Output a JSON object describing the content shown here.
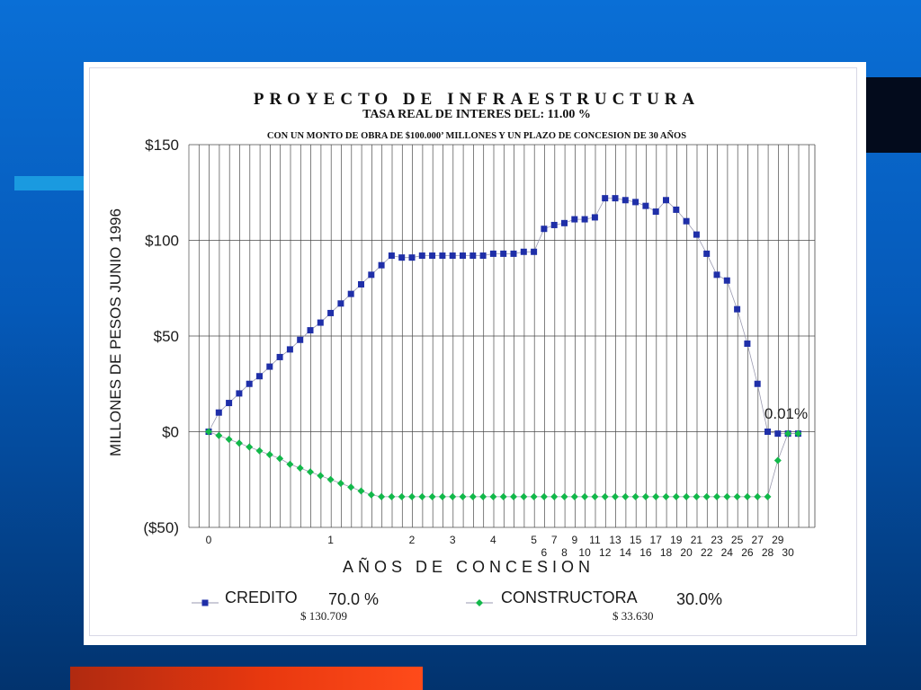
{
  "chart_data": {
    "type": "line",
    "title": "PROYECTO DE INFRAESTRUCTURA",
    "subtitle": "TASA REAL DE INTERES DEL: 11.00 %",
    "subtitle2": "CON UN MONTO DE OBRA DE $100.000’ MILLONES Y UN PLAZO DE CONCESION DE 30 AÑOS",
    "xlabel": "AÑOS DE CONCESION",
    "ylabel": "MILLONES DE PESOS JUNIO 1996",
    "ylim": [
      -50,
      150
    ],
    "y_ticks": [
      {
        "v": 150,
        "label": "$150"
      },
      {
        "v": 100,
        "label": "$100"
      },
      {
        "v": 50,
        "label": "$50"
      },
      {
        "v": 0,
        "label": "$0"
      },
      {
        "v": -50,
        "label": "($50)"
      }
    ],
    "x_ticks_upper": [
      {
        "at": 0,
        "label": "0"
      },
      {
        "at": 12,
        "label": "1"
      },
      {
        "at": 20,
        "label": "2"
      },
      {
        "at": 24,
        "label": "3"
      },
      {
        "at": 28,
        "label": "4"
      },
      {
        "at": 32,
        "label": "5"
      },
      {
        "at": 34,
        "label": "7"
      },
      {
        "at": 36,
        "label": "9"
      },
      {
        "at": 38,
        "label": "11"
      },
      {
        "at": 40,
        "label": "13"
      },
      {
        "at": 42,
        "label": "15"
      },
      {
        "at": 44,
        "label": "17"
      },
      {
        "at": 46,
        "label": "19"
      },
      {
        "at": 48,
        "label": "21"
      },
      {
        "at": 50,
        "label": "23"
      },
      {
        "at": 52,
        "label": "25"
      },
      {
        "at": 54,
        "label": "27"
      },
      {
        "at": 56,
        "label": "29"
      }
    ],
    "x_ticks_lower": [
      {
        "at": 33,
        "label": "6"
      },
      {
        "at": 35,
        "label": "8"
      },
      {
        "at": 37,
        "label": "10"
      },
      {
        "at": 39,
        "label": "12"
      },
      {
        "at": 41,
        "label": "14"
      },
      {
        "at": 43,
        "label": "16"
      },
      {
        "at": 45,
        "label": "18"
      },
      {
        "at": 47,
        "label": "20"
      },
      {
        "at": 49,
        "label": "22"
      },
      {
        "at": 51,
        "label": "24"
      },
      {
        "at": 53,
        "label": "26"
      },
      {
        "at": 55,
        "label": "28"
      },
      {
        "at": 57,
        "label": "30"
      }
    ],
    "series": [
      {
        "name": "CREDITO",
        "color": "#1f2fa8",
        "marker": "square",
        "values": [
          0,
          10,
          15,
          20,
          25,
          29,
          34,
          39,
          43,
          48,
          53,
          57,
          62,
          67,
          72,
          77,
          82,
          87,
          92,
          91,
          91,
          92,
          92,
          92,
          92,
          92,
          92,
          92,
          93,
          93,
          93,
          94,
          94,
          106,
          108,
          109,
          111,
          111,
          112,
          122,
          122,
          121,
          120,
          118,
          115,
          121,
          116,
          110,
          103,
          93,
          82,
          79,
          64,
          46,
          25,
          0,
          -1,
          -1,
          -1
        ]
      },
      {
        "name": "CONSTRUCTORA",
        "color": "#12b84a",
        "marker": "diamond",
        "values": [
          0,
          -2,
          -4,
          -6,
          -8,
          -10,
          -12,
          -14,
          -17,
          -19,
          -21,
          -23,
          -25,
          -27,
          -29,
          -31,
          -33,
          -34,
          -34,
          -34,
          -34,
          -34,
          -34,
          -34,
          -34,
          -34,
          -34,
          -34,
          -34,
          -34,
          -34,
          -34,
          -34,
          -34,
          -34,
          -34,
          -34,
          -34,
          -34,
          -34,
          -34,
          -34,
          -34,
          -34,
          -34,
          -34,
          -34,
          -34,
          -34,
          -34,
          -34,
          -34,
          -34,
          -34,
          -34,
          -34,
          -15,
          -1,
          -1
        ]
      }
    ],
    "annotation": "0.01%",
    "legend": [
      {
        "name": "CREDITO",
        "pct": "70.0 %",
        "amount": "$ 130.709"
      },
      {
        "name": "CONSTRUCTORA",
        "pct": "30.0%",
        "amount": "$ 33.630"
      }
    ],
    "grid": true,
    "legend_placement": "bottom"
  }
}
